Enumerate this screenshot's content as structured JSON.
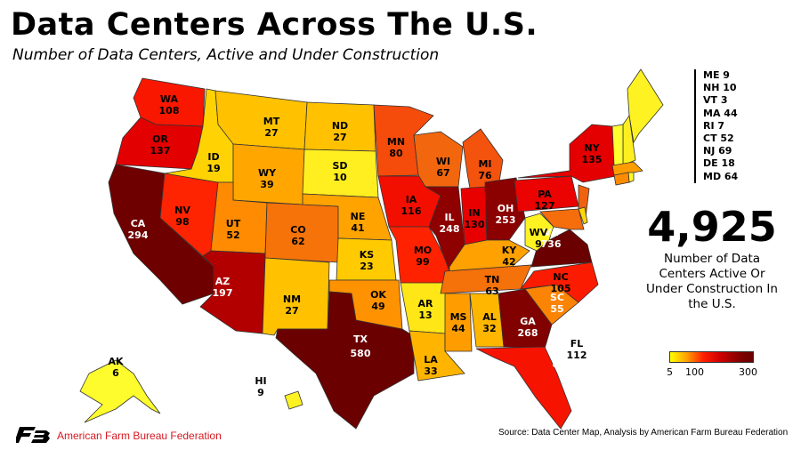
{
  "title": "Data Centers Across The U.S.",
  "subtitle": "Number of Data Centers, Active and Under Construction",
  "map_data": {
    "type": "choropleth",
    "states": [
      {
        "abbr": "WA",
        "value": 108
      },
      {
        "abbr": "OR",
        "value": 137
      },
      {
        "abbr": "CA",
        "value": 294
      },
      {
        "abbr": "NV",
        "value": 98
      },
      {
        "abbr": "ID",
        "value": 19
      },
      {
        "abbr": "MT",
        "value": 27
      },
      {
        "abbr": "WY",
        "value": 39
      },
      {
        "abbr": "UT",
        "value": 52
      },
      {
        "abbr": "AZ",
        "value": 197
      },
      {
        "abbr": "CO",
        "value": 62
      },
      {
        "abbr": "NM",
        "value": 27
      },
      {
        "abbr": "ND",
        "value": 27
      },
      {
        "abbr": "SD",
        "value": 10
      },
      {
        "abbr": "NE",
        "value": 41
      },
      {
        "abbr": "KS",
        "value": 23
      },
      {
        "abbr": "OK",
        "value": 49
      },
      {
        "abbr": "TX",
        "value": 580
      },
      {
        "abbr": "MN",
        "value": 80
      },
      {
        "abbr": "IA",
        "value": 116
      },
      {
        "abbr": "MO",
        "value": 99
      },
      {
        "abbr": "AR",
        "value": 13
      },
      {
        "abbr": "LA",
        "value": 33
      },
      {
        "abbr": "WI",
        "value": 67
      },
      {
        "abbr": "IL",
        "value": 248
      },
      {
        "abbr": "MI",
        "value": 76
      },
      {
        "abbr": "IN",
        "value": 130
      },
      {
        "abbr": "OH",
        "value": 253
      },
      {
        "abbr": "KY",
        "value": 42
      },
      {
        "abbr": "TN",
        "value": 63
      },
      {
        "abbr": "MS",
        "value": 44
      },
      {
        "abbr": "AL",
        "value": 32
      },
      {
        "abbr": "GA",
        "value": 268
      },
      {
        "abbr": "FL",
        "value": 112
      },
      {
        "abbr": "SC",
        "value": 55
      },
      {
        "abbr": "NC",
        "value": 105
      },
      {
        "abbr": "VA",
        "value": 736
      },
      {
        "abbr": "WV",
        "value": 9
      },
      {
        "abbr": "PA",
        "value": 127
      },
      {
        "abbr": "NY",
        "value": 135
      },
      {
        "abbr": "AK",
        "value": 6
      },
      {
        "abbr": "HI",
        "value": 9
      },
      {
        "abbr": "ME",
        "value": 9
      },
      {
        "abbr": "NH",
        "value": 10
      },
      {
        "abbr": "VT",
        "value": 3
      },
      {
        "abbr": "MA",
        "value": 44
      },
      {
        "abbr": "RI",
        "value": 7
      },
      {
        "abbr": "CT",
        "value": 52
      },
      {
        "abbr": "NJ",
        "value": 69
      },
      {
        "abbr": "DE",
        "value": 18
      },
      {
        "abbr": "MD",
        "value": 64
      }
    ],
    "small_states_list": [
      "ME 9",
      "NH 10",
      "VT 3",
      "MA 44",
      "RI 7",
      "CT 52",
      "NJ 69",
      "DE 18",
      "MD 64"
    ],
    "color_scale": {
      "min_color": "#ffff00",
      "mid_color": "#ff0000",
      "max_color": "#6b0000",
      "ticks": [
        "5",
        "100",
        "300"
      ]
    }
  },
  "total": "4,925",
  "total_description": "Number of Data Centers Active Or Under Construction In the U.S.",
  "organization": "American Farm Bureau Federation",
  "source": "Source: Data Center Map, Analysis by American Farm Bureau Federation"
}
